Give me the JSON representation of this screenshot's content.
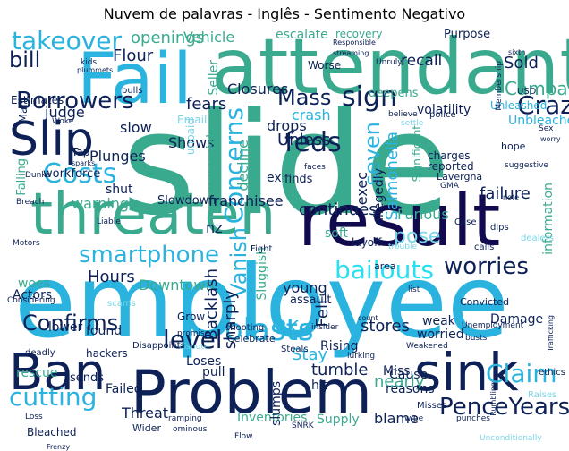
{
  "title": "Nuvem de palavras - Inglês - Sentimento Negativo",
  "palette": {
    "navy": "#0d2157",
    "deep": "#120a4e",
    "blue": "#1a8fc6",
    "sky": "#2bb3df",
    "teal": "#3aaa8f",
    "green": "#4cc08f",
    "aqua": "#28e0f0",
    "light": "#7bd6e8"
  },
  "words": [
    {
      "text": "slide",
      "color": "teal"
    },
    {
      "text": "employee",
      "color": "sky"
    },
    {
      "text": "attendant",
      "color": "teal"
    },
    {
      "text": "result",
      "color": "deep"
    },
    {
      "text": "Problem",
      "color": "navy"
    },
    {
      "text": "threaten",
      "color": "teal"
    },
    {
      "text": "Fail",
      "color": "sky"
    },
    {
      "text": "sink",
      "color": "navy"
    },
    {
      "text": "Ban",
      "color": "navy"
    },
    {
      "text": "Slip",
      "color": "navy"
    },
    {
      "text": "takeover",
      "color": "sky"
    },
    {
      "text": "Borrowers",
      "color": "navy"
    },
    {
      "text": "bill",
      "color": "navy"
    },
    {
      "text": "smartphone",
      "color": "sky"
    },
    {
      "text": "bailouts",
      "color": "aqua"
    },
    {
      "text": "worries",
      "color": "navy"
    },
    {
      "text": "Claim",
      "color": "sky"
    },
    {
      "text": "PenceYears",
      "color": "navy"
    },
    {
      "text": "Costs",
      "color": "sky"
    },
    {
      "text": "cutting",
      "color": "sky"
    },
    {
      "text": "Confirms",
      "color": "navy"
    },
    {
      "text": "blasts",
      "color": "sky"
    },
    {
      "text": "level",
      "color": "navy"
    },
    {
      "text": "feds",
      "color": "navy"
    },
    {
      "text": "sign",
      "color": "navy"
    },
    {
      "text": "Mass",
      "color": "navy"
    },
    {
      "text": "Crazy",
      "color": "navy"
    },
    {
      "text": "seven",
      "color": "sky"
    },
    {
      "text": "Concerns",
      "color": "sky"
    },
    {
      "text": "Vanish",
      "color": "sky"
    },
    {
      "text": "pose",
      "color": "light"
    },
    {
      "text": "Flour",
      "color": "navy"
    },
    {
      "text": "openings",
      "color": "teal"
    },
    {
      "text": "Vehicle",
      "color": "teal"
    },
    {
      "text": "Seller",
      "color": "teal"
    },
    {
      "text": "escalate",
      "color": "teal"
    },
    {
      "text": "recovery",
      "color": "teal"
    },
    {
      "text": "Purpose",
      "color": "navy"
    },
    {
      "text": "recall",
      "color": "navy"
    },
    {
      "text": "Sold",
      "color": "navy"
    },
    {
      "text": "Campaign",
      "color": "teal"
    },
    {
      "text": "judge",
      "color": "navy"
    },
    {
      "text": "Estimates",
      "color": "navy"
    },
    {
      "text": "Worse",
      "color": "navy"
    },
    {
      "text": "deepens",
      "color": "teal"
    },
    {
      "text": "volatility",
      "color": "navy"
    },
    {
      "text": "Closures",
      "color": "navy"
    },
    {
      "text": "fears",
      "color": "navy"
    },
    {
      "text": "crash",
      "color": "sky"
    },
    {
      "text": "Salmonella",
      "color": "sky"
    },
    {
      "text": "Unleashed",
      "color": "sky"
    },
    {
      "text": "Unbleached",
      "color": "sky"
    },
    {
      "text": "slow",
      "color": "navy"
    },
    {
      "text": "drops",
      "color": "navy"
    },
    {
      "text": "Unless",
      "color": "navy"
    },
    {
      "text": "Shows",
      "color": "navy"
    },
    {
      "text": "commercial",
      "color": "teal"
    },
    {
      "text": "decline",
      "color": "teal"
    },
    {
      "text": "allegedly",
      "color": "navy"
    },
    {
      "text": "exec",
      "color": "navy"
    },
    {
      "text": "failure",
      "color": "navy"
    },
    {
      "text": "Significant",
      "color": "teal"
    },
    {
      "text": "charges",
      "color": "navy"
    },
    {
      "text": "reported",
      "color": "navy"
    },
    {
      "text": "Lavergna",
      "color": "navy"
    },
    {
      "text": "Plunges",
      "color": "navy"
    },
    {
      "text": "workforce",
      "color": "navy"
    },
    {
      "text": "Falling",
      "color": "teal"
    },
    {
      "text": "warning",
      "color": "teal"
    },
    {
      "text": "finds",
      "color": "navy"
    },
    {
      "text": "ex",
      "color": "navy"
    },
    {
      "text": "franchisee",
      "color": "navy"
    },
    {
      "text": "shut",
      "color": "navy"
    },
    {
      "text": "Slowdown",
      "color": "navy"
    },
    {
      "text": "continues",
      "color": "navy"
    },
    {
      "text": "Furious",
      "color": "teal"
    },
    {
      "text": "information",
      "color": "teal"
    },
    {
      "text": "nz",
      "color": "navy"
    },
    {
      "text": "soft",
      "color": "teal"
    },
    {
      "text": "layoff",
      "color": "navy"
    },
    {
      "text": "area",
      "color": "navy"
    },
    {
      "text": "young",
      "color": "navy"
    },
    {
      "text": "Hours",
      "color": "navy"
    },
    {
      "text": "woes",
      "color": "teal"
    },
    {
      "text": "Actors",
      "color": "navy"
    },
    {
      "text": "Downtown",
      "color": "teal"
    },
    {
      "text": "Backlash",
      "color": "navy"
    },
    {
      "text": "sharply",
      "color": "navy"
    },
    {
      "text": "Sluggish",
      "color": "teal"
    },
    {
      "text": "assault",
      "color": "navy"
    },
    {
      "text": "Fell",
      "color": "navy"
    },
    {
      "text": "stores",
      "color": "navy"
    },
    {
      "text": "3K",
      "color": "sky"
    },
    {
      "text": "Stay",
      "color": "sky"
    },
    {
      "text": "lower",
      "color": "navy"
    },
    {
      "text": "found",
      "color": "navy"
    },
    {
      "text": "Loses",
      "color": "navy"
    },
    {
      "text": "Rising",
      "color": "navy"
    },
    {
      "text": "weak",
      "color": "navy"
    },
    {
      "text": "worried",
      "color": "navy"
    },
    {
      "text": "Damage",
      "color": "navy"
    },
    {
      "text": "rescue",
      "color": "teal"
    },
    {
      "text": "hackers",
      "color": "navy"
    },
    {
      "text": "tumble",
      "color": "navy"
    },
    {
      "text": "Miss",
      "color": "navy"
    },
    {
      "text": "nearly",
      "color": "teal"
    },
    {
      "text": "Cause",
      "color": "navy"
    },
    {
      "text": "reasons",
      "color": "navy"
    },
    {
      "text": "pull",
      "color": "navy"
    },
    {
      "text": "sends",
      "color": "navy"
    },
    {
      "text": "Failed",
      "color": "navy"
    },
    {
      "text": "Threat",
      "color": "navy"
    },
    {
      "text": "Inventories",
      "color": "teal"
    },
    {
      "text": "Supply",
      "color": "teal"
    },
    {
      "text": "blame",
      "color": "navy"
    },
    {
      "text": "Bleached",
      "color": "navy"
    },
    {
      "text": "slumps",
      "color": "navy"
    },
    {
      "text": "hit",
      "color": "navy"
    },
    {
      "text": "Grow",
      "color": "navy"
    },
    {
      "text": "Convicted",
      "color": "navy"
    },
    {
      "text": "Celebrate",
      "color": "navy"
    },
    {
      "text": "Steals",
      "color": "navy"
    },
    {
      "text": "ethics",
      "color": "navy"
    },
    {
      "text": "Disappoints",
      "color": "navy"
    },
    {
      "text": "Wider",
      "color": "navy"
    },
    {
      "text": "Email",
      "color": "light"
    },
    {
      "text": "unpaid",
      "color": "light"
    },
    {
      "text": "Tap",
      "color": "navy"
    },
    {
      "text": "Breach",
      "color": "navy"
    },
    {
      "text": "Woke",
      "color": "navy"
    },
    {
      "text": "bulls",
      "color": "navy"
    },
    {
      "text": "Man",
      "color": "navy"
    },
    {
      "text": "Membership",
      "color": "navy"
    },
    {
      "text": "USD",
      "color": "navy"
    },
    {
      "text": "police",
      "color": "navy"
    },
    {
      "text": "believe",
      "color": "navy"
    },
    {
      "text": "hope",
      "color": "navy"
    },
    {
      "text": "Sex",
      "color": "navy"
    },
    {
      "text": "worry",
      "color": "navy"
    },
    {
      "text": "Case",
      "color": "navy"
    },
    {
      "text": "dips",
      "color": "navy"
    },
    {
      "text": "calls",
      "color": "navy"
    },
    {
      "text": "dealers",
      "color": "light"
    },
    {
      "text": "shooting",
      "color": "navy"
    },
    {
      "text": "Fight",
      "color": "navy"
    },
    {
      "text": "list",
      "color": "navy"
    },
    {
      "text": "count",
      "color": "navy"
    },
    {
      "text": "Unemployment",
      "color": "navy"
    },
    {
      "text": "busts",
      "color": "navy"
    },
    {
      "text": "deadly",
      "color": "navy"
    },
    {
      "text": "Considering",
      "color": "navy"
    },
    {
      "text": "Motors",
      "color": "navy"
    },
    {
      "text": "Liable",
      "color": "navy"
    },
    {
      "text": "promise",
      "color": "navy"
    },
    {
      "text": "lurking",
      "color": "navy"
    },
    {
      "text": "Weakened",
      "color": "navy"
    },
    {
      "text": "Loss",
      "color": "navy"
    },
    {
      "text": "punches",
      "color": "navy"
    },
    {
      "text": "Raises",
      "color": "light"
    },
    {
      "text": "wipe",
      "color": "navy"
    },
    {
      "text": "ramping",
      "color": "navy"
    },
    {
      "text": "scams",
      "color": "light"
    },
    {
      "text": "ominous",
      "color": "navy"
    },
    {
      "text": "Trafficking",
      "color": "navy"
    },
    {
      "text": "insider",
      "color": "navy"
    },
    {
      "text": "dispute",
      "color": "light"
    },
    {
      "text": "Misses",
      "color": "navy"
    },
    {
      "text": "kids",
      "color": "navy"
    },
    {
      "text": "plummets",
      "color": "navy"
    },
    {
      "text": "sixth",
      "color": "navy"
    },
    {
      "text": "streaming",
      "color": "navy"
    },
    {
      "text": "Responsible",
      "color": "navy"
    },
    {
      "text": "Unruly",
      "color": "navy"
    },
    {
      "text": "settle",
      "color": "light"
    },
    {
      "text": "suggestive",
      "color": "navy"
    },
    {
      "text": "note",
      "color": "navy"
    },
    {
      "text": "GMA",
      "color": "navy"
    },
    {
      "text": "trouble",
      "color": "light"
    },
    {
      "text": "faces",
      "color": "navy"
    },
    {
      "text": "sparks",
      "color": "navy"
    },
    {
      "text": "Dunks",
      "color": "navy"
    },
    {
      "text": "Flow",
      "color": "navy"
    },
    {
      "text": "Frenzy",
      "color": "navy"
    },
    {
      "text": "Rumbling",
      "color": "navy"
    },
    {
      "text": "SNRK",
      "color": "navy"
    },
    {
      "text": "Unconditionally",
      "color": "light"
    }
  ]
}
